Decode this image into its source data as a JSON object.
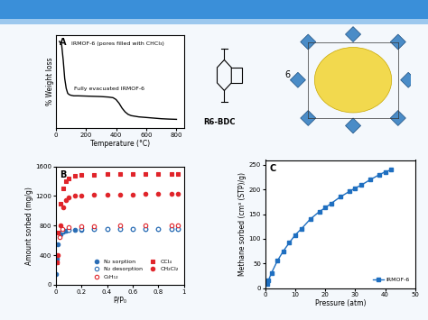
{
  "chart_data": [
    {
      "type": "line",
      "title": "A",
      "x_label": "Temperature (°C)",
      "y_label": "% Weight loss",
      "xlim": [
        0,
        850
      ],
      "xticks": [
        0,
        200,
        400,
        600,
        800
      ],
      "ylim": [
        30,
        105
      ],
      "tick_labels": "x",
      "annotations": [
        "IRMOF-6 (pores filled with CHCl₃)",
        "Fully evacuated IRMOF-6"
      ],
      "series": [
        {
          "color": "#000000",
          "x": [
            25,
            40,
            50,
            60,
            70,
            80,
            90,
            100,
            120,
            150,
            200,
            250,
            300,
            350,
            380,
            400,
            420,
            440,
            460,
            480,
            500,
            550,
            600,
            650,
            700,
            750,
            800
          ],
          "values": [
            100,
            97,
            85,
            70,
            62,
            58,
            57,
            56.5,
            56,
            56,
            55.8,
            55.6,
            55.4,
            55,
            54.5,
            53,
            50,
            46,
            43,
            41,
            40,
            39,
            38.5,
            38,
            37.5,
            37.2,
            37
          ]
        }
      ]
    },
    {
      "type": "scatter",
      "title": "B",
      "x_label": "P/P₀",
      "y_label": "Amount sorbed (mg/g)",
      "xlim": [
        0,
        1
      ],
      "xticks": [
        0,
        0.2,
        0.4,
        0.6,
        0.8,
        1
      ],
      "ylim": [
        0,
        1600
      ],
      "yticks": [
        0,
        400,
        800,
        1200,
        1600
      ],
      "legend": "lower right",
      "series": [
        {
          "name": "N₂ sorption",
          "color": "#2a6db5",
          "marker": "circle",
          "x": [
            0.005,
            0.01,
            0.02,
            0.04,
            0.06,
            0.08,
            0.1,
            0.15,
            0.2,
            0.3,
            0.4,
            0.5,
            0.6,
            0.7,
            0.8,
            0.9,
            0.95
          ],
          "values": [
            150,
            350,
            550,
            680,
            720,
            735,
            740,
            745,
            748,
            750,
            752,
            753,
            754,
            755,
            756,
            757,
            758
          ]
        },
        {
          "name": "N₂ desorption",
          "color": "#2a6db5",
          "marker": "open_circle",
          "x": [
            0.95,
            0.9,
            0.8,
            0.7,
            0.6,
            0.5,
            0.4,
            0.3,
            0.2,
            0.1,
            0.05
          ],
          "values": [
            760,
            758,
            757,
            756,
            755,
            754,
            753,
            752,
            750,
            745,
            730
          ]
        },
        {
          "name": "C₆H₁₂",
          "color": "#e0242a",
          "marker": "open_circle",
          "x": [
            0.01,
            0.03,
            0.05,
            0.1,
            0.2,
            0.3,
            0.5,
            0.7,
            0.9,
            0.95
          ],
          "values": [
            300,
            650,
            760,
            780,
            790,
            795,
            800,
            800,
            800,
            800
          ]
        },
        {
          "name": "CCl₄",
          "color": "#e0242a",
          "marker": "square",
          "x": [
            0.01,
            0.02,
            0.04,
            0.06,
            0.08,
            0.1,
            0.15,
            0.2,
            0.3,
            0.4,
            0.5,
            0.6,
            0.7,
            0.8,
            0.9,
            0.95
          ],
          "values": [
            300,
            700,
            1100,
            1300,
            1400,
            1440,
            1470,
            1480,
            1490,
            1495,
            1500,
            1500,
            1500,
            1500,
            1500,
            1500
          ]
        },
        {
          "name": "CH₂Cl₂",
          "color": "#e0242a",
          "marker": "circle",
          "x": [
            0.02,
            0.04,
            0.06,
            0.08,
            0.1,
            0.15,
            0.2,
            0.3,
            0.4,
            0.5,
            0.6,
            0.7,
            0.8,
            0.9,
            0.95
          ],
          "values": [
            400,
            800,
            1050,
            1150,
            1180,
            1200,
            1210,
            1215,
            1220,
            1220,
            1220,
            1225,
            1225,
            1230,
            1230
          ]
        }
      ]
    },
    {
      "type": "line",
      "title": "C",
      "x_label": "Pressure (atm)",
      "y_label": "Methane sorbed (cm³ (STP)/g)",
      "xlim": [
        0,
        50
      ],
      "xticks": [
        0,
        10,
        20,
        30,
        40,
        50
      ],
      "ylim": [
        0,
        260
      ],
      "yticks": [
        0,
        50,
        100,
        150,
        200,
        250
      ],
      "legend": "lower right",
      "series": [
        {
          "name": "IRMOF-6",
          "color": "#1f6fc0",
          "marker": "square",
          "x": [
            0.5,
            1,
            2,
            4,
            6,
            8,
            10,
            12,
            15,
            18,
            20,
            22,
            25,
            28,
            30,
            32,
            35,
            38,
            40,
            42
          ],
          "values": [
            8,
            15,
            30,
            55,
            75,
            92,
            108,
            120,
            140,
            155,
            163,
            172,
            185,
            196,
            203,
            209,
            220,
            230,
            236,
            240
          ]
        }
      ]
    }
  ],
  "structures": {
    "linker": {
      "label": "R6-BDC"
    },
    "framework": {
      "label": "6"
    }
  }
}
